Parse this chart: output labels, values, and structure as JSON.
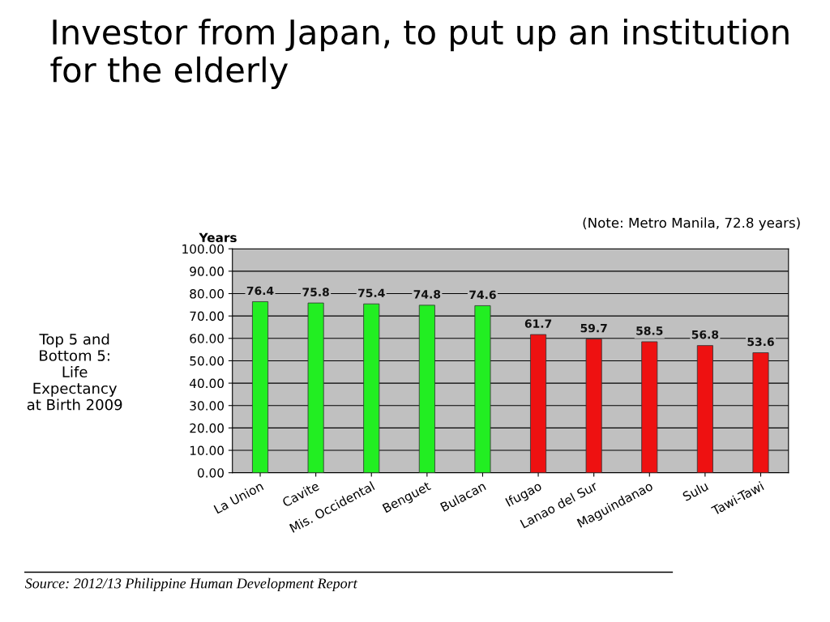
{
  "chart_data": {
    "type": "bar",
    "title": "Investor from Japan, to put up an institution for the elderly",
    "ylabel": "Years",
    "categories": [
      "La Union",
      "Cavite",
      "Mis. Occidental",
      "Benguet",
      "Bulacan",
      "Ifugao",
      "Lanao del Sur",
      "Maguindanao",
      "Sulu",
      "Tawi-Tawi"
    ],
    "values": [
      76.4,
      75.8,
      75.4,
      74.8,
      74.6,
      61.7,
      59.7,
      58.5,
      56.8,
      53.6
    ],
    "colors": [
      "#22ee22",
      "#22ee22",
      "#22ee22",
      "#22ee22",
      "#22ee22",
      "#ee1111",
      "#ee1111",
      "#ee1111",
      "#ee1111",
      "#ee1111"
    ],
    "ylim": [
      0,
      100
    ],
    "yticks": [
      {
        "value": 0,
        "label": "0.00"
      },
      {
        "value": 10,
        "label": "10.00"
      },
      {
        "value": 20,
        "label": "20.00"
      },
      {
        "value": 30,
        "label": "30.00"
      },
      {
        "value": 40,
        "label": "40.00"
      },
      {
        "value": 50,
        "label": "50.00"
      },
      {
        "value": 60,
        "label": "60.00"
      },
      {
        "value": 70,
        "label": "70.00"
      },
      {
        "value": 80,
        "label": "80.00"
      },
      {
        "value": 90,
        "label": "90.00"
      },
      {
        "value": 100,
        "label": "100.00"
      }
    ],
    "grid": "y",
    "data_labels": true,
    "annotations": [
      "(Note: Metro Manila, 72.8 years)",
      "Top 5 and\nBottom 5:\nLife\nExpectancy\nat Birth 2009",
      "Source: 2012/13 Philippine Human Development Report"
    ]
  }
}
